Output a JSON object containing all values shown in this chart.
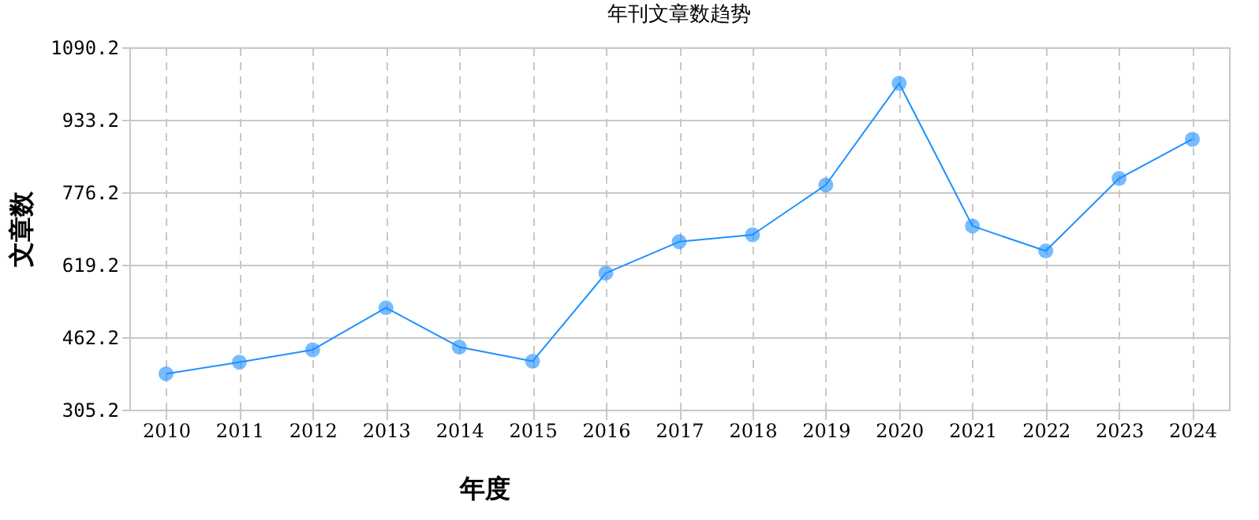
{
  "chart_data": {
    "type": "line",
    "title": "年刊文章数趋势",
    "xlabel": "年度",
    "ylabel": "文章数",
    "categories": [
      "2010",
      "2011",
      "2012",
      "2013",
      "2014",
      "2015",
      "2016",
      "2017",
      "2018",
      "2019",
      "2020",
      "2021",
      "2022",
      "2023",
      "2024"
    ],
    "series": [
      {
        "color": "#1e90ff",
        "values": [
          383,
          408,
          435,
          526,
          441,
          410,
          601,
          669,
          684,
          792,
          1012,
          703,
          649,
          806,
          891
        ]
      }
    ],
    "ylim": [
      305.2,
      1090.2
    ],
    "yticks": [
      305.2,
      462.2,
      619.2,
      776.2,
      933.2,
      1090.2
    ],
    "grid": true,
    "marker": "circle",
    "line_style": "solid",
    "legend": false
  }
}
